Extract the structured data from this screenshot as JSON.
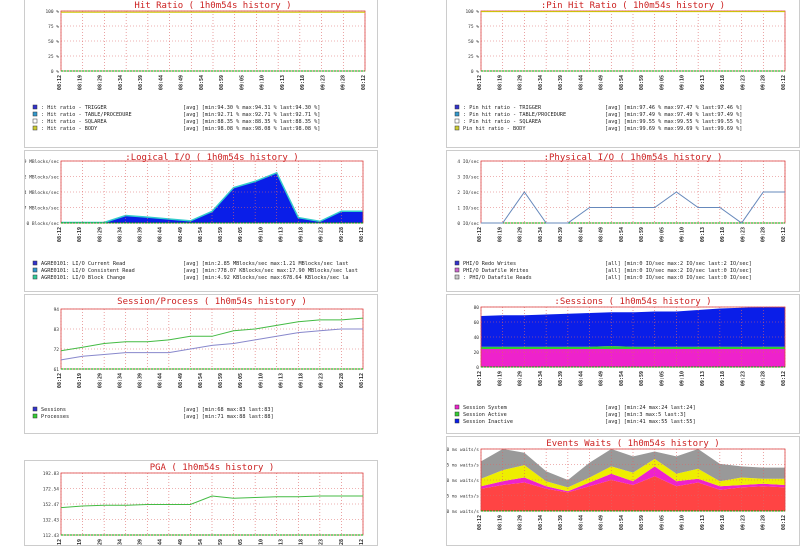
{
  "colors": {
    "title_red": "#cc2222",
    "plot_border": "#dd4444",
    "grid": "#dd6666",
    "zero_line": "#00aa00",
    "top_line": "#cccc00",
    "blue_fill": "#0a1ee8",
    "cyan_line": "#33cccc",
    "green_line": "#44bb44",
    "purple_line": "#8888cc",
    "pink": "#ee22cc",
    "orange_red": "#ff4444",
    "yellow": "#eeee00",
    "grey": "#999999",
    "line_blue": "#6688bb"
  },
  "time_labels": [
    "08:12",
    "08:19",
    "08:29",
    "08:34",
    "08:39",
    "08:44",
    "08:49",
    "08:54",
    "08:59",
    "09:05",
    "09:10",
    "09:13",
    "09:18",
    "09:23",
    "09:28",
    "08:12"
  ],
  "chart_data": [
    {
      "id": "hit_ratio",
      "type": "line",
      "title": "Hit Ratio ( 1h0m54s history )",
      "y_ticks": [
        "100 %",
        "75 %",
        "50 %",
        "25 %",
        "0 %"
      ],
      "ylim": [
        0,
        100
      ],
      "legend": [
        {
          "label": ": Hit ratio - TRIGGER",
          "stat": "[avg] [min:94.30 % max:94.31 % last:94.30 %]",
          "color": "#3333cc"
        },
        {
          "label": ": Hit ratio - TABLE/PROCEDURE",
          "stat": "[avg] [min:92.71 % max:92.71 % last:92.71 %]",
          "color": "#3399cc"
        },
        {
          "label": ": Hit ratio - SQLAREA",
          "stat": "[avg] [min:88.35 % max:88.35 % last:88.35 %]",
          "color": "#ffffff"
        },
        {
          "label": ": Hit ratio - BODY",
          "stat": "[avg] [min:98.08 % max:98.08 % last:98.08 %]",
          "color": "#cccc33"
        }
      ],
      "series": [
        {
          "values": [
            98,
            98,
            98,
            98,
            98,
            98,
            98,
            98,
            98,
            98,
            98,
            98,
            98,
            98,
            98
          ],
          "color": "#cccc00"
        }
      ]
    },
    {
      "id": "pin_hit_ratio",
      "type": "line",
      "title": ":Pin Hit Ratio ( 1h0m54s history )",
      "y_ticks": [
        "100 %",
        "75 %",
        "50 %",
        "25 %",
        "0 %"
      ],
      "ylim": [
        0,
        100
      ],
      "legend": [
        {
          "label": ": Pin hit ratio - TRIGGER",
          "stat": "[avg] [min:97.46 % max:97.47 % last:97.46 %]",
          "color": "#3333cc"
        },
        {
          "label": ": Pin hit ratio - TABLE/PROCEDURE",
          "stat": "[avg] [min:97.49 % max:97.49 % last:97.49 %]",
          "color": "#3399cc"
        },
        {
          "label": ": Pin hit ratio - SQLAREA",
          "stat": "[avg] [min:99.55 % max:99.55 % last:99.55 %]",
          "color": "#ffffff"
        },
        {
          "label": "Pin hit ratio - BODY",
          "stat": "[avg] [min:99.69 % max:99.69 % last:99.69 %]",
          "color": "#cccc33"
        }
      ],
      "series": [
        {
          "values": [
            99,
            99,
            99,
            99,
            99,
            99,
            99,
            99,
            99,
            99,
            99,
            99,
            99,
            99,
            99
          ],
          "color": "#cccc00"
        }
      ]
    },
    {
      "id": "logical_io",
      "type": "area",
      "title": ":Logical I/O ( 1h0m54s history )",
      "y_ticks": [
        "23.09 MBlocks/sec",
        "17.32 MBlocks/sec",
        "11.54 MBlocks/sec",
        "5.77 MBlocks/sec",
        "0 Blocks/sec"
      ],
      "ylim": [
        0,
        23.09
      ],
      "legend": [
        {
          "label": "AGRE0101: LI/O Current Read",
          "stat": "[avg] [min:2.85 MBlocks/sec max:1.21 MBlocks/sec last",
          "color": "#3333cc"
        },
        {
          "label": "AGRE0101: LI/O Consistent Read",
          "stat": "[avg] [min:778.07 KBlocks/sec max:17.90 MBlocks/sec last",
          "color": "#3399cc"
        },
        {
          "label": "AGRE0101: LI/O Block Change",
          "stat": "[avg] [min:4.92 KBlocks/sec max:678.64 KBlocks/sec la",
          "color": "#33cc99"
        }
      ],
      "series": [
        {
          "values": [
            0.2,
            0.2,
            0.2,
            2.8,
            2.2,
            1.5,
            0.8,
            4.3,
            13.2,
            15.5,
            18.7,
            2.0,
            0.6,
            4.4,
            4.4
          ],
          "color": "#0a1ee8"
        }
      ]
    },
    {
      "id": "physical_io",
      "type": "line",
      "title": ":Physical I/O ( 1h0m54s history )",
      "y_ticks": [
        "4 IO/sec",
        "3 IO/sec",
        "2 IO/sec",
        "1 IO/sec",
        "0 IO/sec"
      ],
      "ylim": [
        0,
        4
      ],
      "legend": [
        {
          "label": "PHI/O Redo Writes",
          "stat": "[all] [min:0 IO/sec max:2 IO/sec last:2 IO/sec]",
          "color": "#3333cc"
        },
        {
          "label": "PHI/O Datafile Writes",
          "stat": "[all] [min:0 IO/sec max:2 IO/sec last:0 IO/sec]",
          "color": "#cc66cc"
        },
        {
          "label": ": PHI/O Datafile Reads",
          "stat": "[all] [min:0 IO/sec max:0 IO/sec last:0 IO/sec]",
          "color": "#cccccc"
        }
      ],
      "series": [
        {
          "values": [
            0,
            0,
            2,
            0,
            0,
            1,
            1,
            1,
            1,
            2,
            1,
            1,
            0,
            2,
            2
          ],
          "color": "#6688bb"
        }
      ]
    },
    {
      "id": "session_process",
      "type": "line",
      "title": "Session/Process ( 1h0m54s history )",
      "y_ticks": [
        "94",
        "83",
        "72",
        "61"
      ],
      "ylim": [
        61,
        94
      ],
      "legend": [
        {
          "label": "Sessions",
          "stat": "[avg] [min:68 max:83 last:83]",
          "color": "#3333cc"
        },
        {
          "label": "Processes",
          "stat": "[avg] [min:71 max:88 last:88]",
          "color": "#33cc33"
        }
      ],
      "series": [
        {
          "name": "Sessions",
          "values": [
            66,
            68,
            69,
            70,
            70,
            70,
            72,
            74,
            75,
            77,
            79,
            81,
            82,
            83,
            83
          ],
          "color": "#8888cc"
        },
        {
          "name": "Processes",
          "values": [
            71,
            73,
            75,
            76,
            76,
            77,
            79,
            79,
            82,
            83,
            85,
            87,
            88,
            88,
            89
          ],
          "color": "#44bb44"
        }
      ]
    },
    {
      "id": "sessions",
      "type": "area",
      "title": ":Sessions ( 1h0m54s history )",
      "y_ticks": [
        "80",
        "60",
        "40",
        "20",
        "0"
      ],
      "ylim": [
        0,
        80
      ],
      "legend": [
        {
          "label": "Session System",
          "stat": "[avg] [min:24 max:24 last:24]",
          "color": "#ee22cc"
        },
        {
          "label": "Session Active",
          "stat": "[avg] [min:3 max:5 last:3]",
          "color": "#33cc33"
        },
        {
          "label": "Session Inactive",
          "stat": "[avg] [min:41 max:55 last:55]",
          "color": "#0a1ee8"
        }
      ],
      "series": [
        {
          "name": "Session System",
          "values": [
            24,
            24,
            24,
            24,
            24,
            24,
            24,
            24,
            24,
            24,
            24,
            24,
            24,
            24,
            24
          ],
          "color": "#ee22cc"
        },
        {
          "name": "Session Active",
          "values": [
            3,
            3,
            3,
            3,
            3,
            3,
            4,
            3,
            3,
            3,
            3,
            3,
            3,
            3,
            3
          ],
          "color": "#33cc33"
        },
        {
          "name": "Session Inactive",
          "values": [
            41,
            42,
            42,
            43,
            44,
            45,
            45,
            46,
            47,
            47,
            49,
            51,
            52,
            53,
            55
          ],
          "color": "#0a1ee8"
        }
      ]
    },
    {
      "id": "pga",
      "type": "line",
      "title": "PGA ( 1h0m54s history )",
      "y_ticks": [
        "192.83",
        "172.54",
        "152.47",
        "132.43",
        "112.43"
      ],
      "ylim": [
        112.43,
        192.83
      ],
      "series": [
        {
          "values": [
            148,
            150,
            151,
            151,
            152,
            152,
            152,
            163,
            160,
            161,
            162,
            162,
            163,
            163,
            163
          ],
          "color": "#44bb44"
        }
      ]
    },
    {
      "id": "events_waits",
      "type": "area",
      "title": "Events Waits ( 1h0m54s history )",
      "y_ticks": [
        "500 ms waits/s",
        "375 ms waits/s",
        "250 ms waits/s",
        "125 ms waits/s",
        "0 ms waits/s"
      ],
      "ylim": [
        0,
        500
      ],
      "series": [
        {
          "name": "red",
          "values": [
            180,
            210,
            230,
            180,
            150,
            200,
            250,
            210,
            280,
            200,
            230,
            170,
            190,
            200,
            190
          ],
          "color": "#ff4444"
        },
        {
          "name": "magenta",
          "values": [
            20,
            30,
            40,
            20,
            10,
            30,
            50,
            30,
            80,
            40,
            30,
            30,
            20,
            20,
            20
          ],
          "color": "#ee22cc"
        },
        {
          "name": "yellow",
          "values": [
            60,
            90,
            100,
            40,
            30,
            40,
            60,
            70,
            60,
            60,
            80,
            40,
            60,
            40,
            50
          ],
          "color": "#eeee00"
        },
        {
          "name": "grey",
          "values": [
            140,
            170,
            100,
            80,
            60,
            120,
            210,
            130,
            60,
            140,
            180,
            140,
            90,
            90,
            90
          ],
          "color": "#999999"
        }
      ]
    }
  ]
}
